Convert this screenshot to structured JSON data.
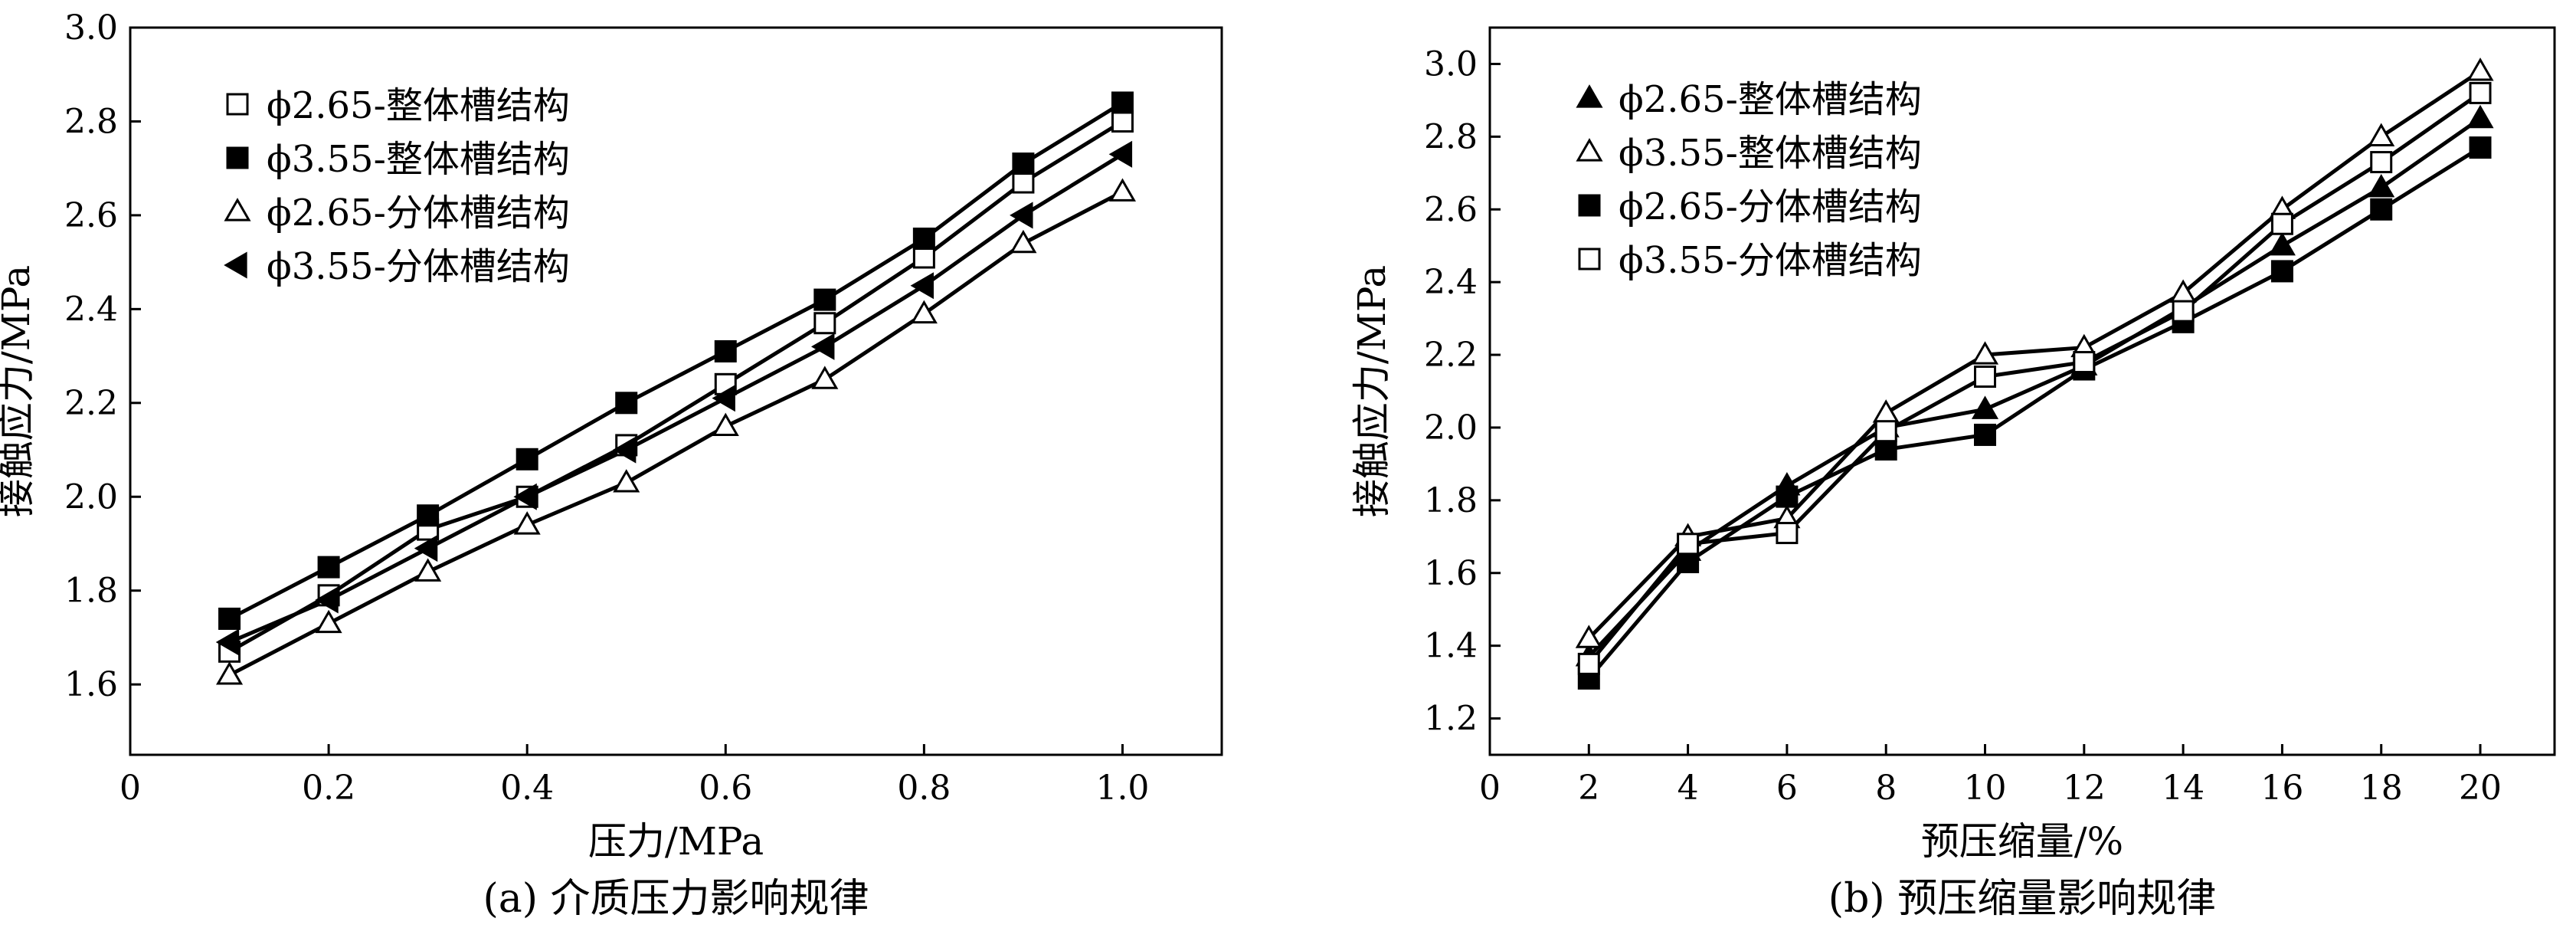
{
  "chart_data": [
    {
      "type": "line",
      "caption": "(a) 介质压力影响规律",
      "xlabel": "压力/MPa",
      "ylabel": "接触应力/MPa",
      "xlim": [
        0,
        1.1
      ],
      "ylim": [
        1.45,
        3.0
      ],
      "xticks": [
        0,
        0.2,
        0.4,
        0.6,
        0.8,
        1.0
      ],
      "xtick_labels": [
        "0",
        "0.2",
        "0.4",
        "0.6",
        "0.8",
        "1.0"
      ],
      "yticks": [
        1.6,
        1.8,
        2.0,
        2.2,
        2.4,
        2.6,
        2.8,
        3.0
      ],
      "ytick_labels": [
        "1.6",
        "1.8",
        "2.0",
        "2.2",
        "2.4",
        "2.6",
        "2.8",
        "3.0"
      ],
      "legend_position": "top-left",
      "grid": false,
      "x": [
        0.1,
        0.2,
        0.3,
        0.4,
        0.5,
        0.6,
        0.7,
        0.8,
        0.9,
        1.0
      ],
      "series": [
        {
          "name": "ϕ2.65-整体槽结构",
          "marker": "square-open",
          "values": [
            1.67,
            1.79,
            1.93,
            2.0,
            2.11,
            2.24,
            2.37,
            2.51,
            2.67,
            2.8
          ]
        },
        {
          "name": "ϕ3.55-整体槽结构",
          "marker": "square-filled",
          "values": [
            1.74,
            1.85,
            1.96,
            2.08,
            2.2,
            2.31,
            2.42,
            2.55,
            2.71,
            2.84
          ]
        },
        {
          "name": "ϕ2.65-分体槽结构",
          "marker": "triangle-up-open",
          "values": [
            1.62,
            1.73,
            1.84,
            1.94,
            2.03,
            2.15,
            2.25,
            2.39,
            2.54,
            2.65
          ]
        },
        {
          "name": "ϕ3.55-分体槽结构",
          "marker": "triangle-left-filled",
          "values": [
            1.69,
            1.78,
            1.89,
            2.0,
            2.1,
            2.21,
            2.32,
            2.45,
            2.6,
            2.73
          ]
        }
      ]
    },
    {
      "type": "line",
      "caption": "(b) 预压缩量影响规律",
      "xlabel": "预压缩量/%",
      "ylabel": "接触应力/MPa",
      "xlim": [
        0,
        21.5
      ],
      "ylim": [
        1.1,
        3.1
      ],
      "xticks": [
        0,
        2,
        4,
        6,
        8,
        10,
        12,
        14,
        16,
        18,
        20
      ],
      "xtick_labels": [
        "0",
        "2",
        "4",
        "6",
        "8",
        "10",
        "12",
        "14",
        "16",
        "18",
        "20"
      ],
      "yticks": [
        1.2,
        1.4,
        1.6,
        1.8,
        2.0,
        2.2,
        2.4,
        2.6,
        2.8,
        3.0
      ],
      "ytick_labels": [
        "1.2",
        "1.4",
        "1.6",
        "1.8",
        "2.0",
        "2.2",
        "2.4",
        "2.6",
        "2.8",
        "3.0"
      ],
      "legend_position": "top-left",
      "grid": false,
      "x": [
        2,
        4,
        6,
        8,
        10,
        12,
        14,
        16,
        18,
        20
      ],
      "series": [
        {
          "name": "ϕ2.65-整体槽结构",
          "marker": "triangle-up-filled",
          "values": [
            1.37,
            1.66,
            1.84,
            2.0,
            2.05,
            2.17,
            2.33,
            2.5,
            2.66,
            2.85
          ]
        },
        {
          "name": "ϕ3.55-整体槽结构",
          "marker": "triangle-up-open",
          "values": [
            1.42,
            1.7,
            1.75,
            2.04,
            2.2,
            2.22,
            2.37,
            2.6,
            2.8,
            2.98
          ]
        },
        {
          "name": "ϕ2.65-分体槽结构",
          "marker": "square-filled",
          "values": [
            1.31,
            1.63,
            1.81,
            1.94,
            1.98,
            2.16,
            2.29,
            2.43,
            2.6,
            2.77
          ]
        },
        {
          "name": "ϕ3.55-分体槽结构",
          "marker": "square-open",
          "values": [
            1.35,
            1.68,
            1.71,
            1.99,
            2.14,
            2.18,
            2.32,
            2.56,
            2.73,
            2.92
          ]
        }
      ]
    }
  ]
}
